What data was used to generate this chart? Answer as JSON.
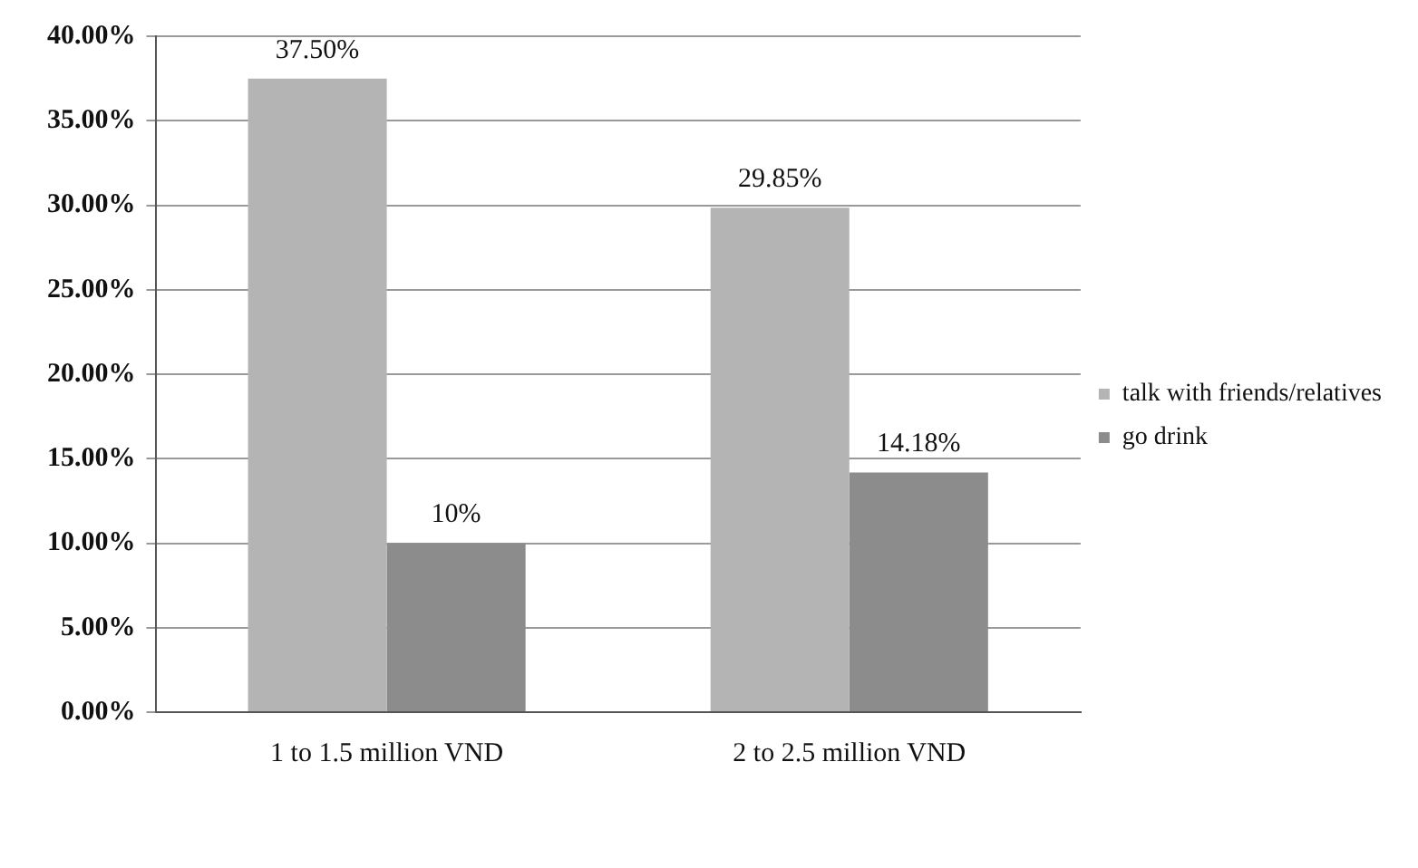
{
  "chart_data": {
    "type": "bar",
    "categories": [
      "1 to 1.5 million VND",
      "2 to 2.5 million VND"
    ],
    "series": [
      {
        "name": "talk with friends/relatives",
        "color": "#b4b4b4",
        "values": [
          37.5,
          29.85
        ],
        "value_labels": [
          "37.50%",
          "29.85%"
        ]
      },
      {
        "name": "go drink",
        "color": "#8c8c8c",
        "values": [
          10,
          14.18
        ],
        "value_labels": [
          "10%",
          "14.18%"
        ]
      }
    ],
    "ylim": [
      0,
      40
    ],
    "yticks": [
      {
        "value": 0,
        "label": "0.00%"
      },
      {
        "value": 5,
        "label": "5.00%"
      },
      {
        "value": 10,
        "label": "10.00%"
      },
      {
        "value": 15,
        "label": "15.00%"
      },
      {
        "value": 20,
        "label": "20.00%"
      },
      {
        "value": 25,
        "label": "25.00%"
      },
      {
        "value": 30,
        "label": "30.00%"
      },
      {
        "value": 35,
        "label": "35.00%"
      },
      {
        "value": 40,
        "label": "40.00%"
      }
    ],
    "grid": "y",
    "legend": "right"
  }
}
